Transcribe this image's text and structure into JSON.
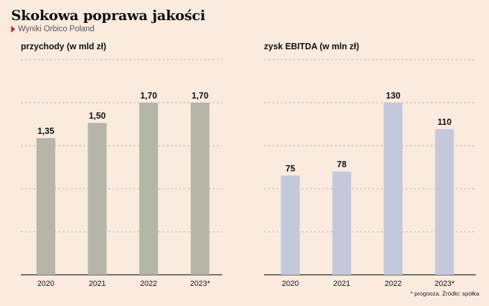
{
  "header": {
    "title": "Skokowa poprawa jakości",
    "subtitle": "Wyniki Orbico Poland",
    "marker_color": "#d7262b"
  },
  "footnote": "* prognoza. Źródło: spółka",
  "chart_data": [
    {
      "type": "bar",
      "title": "przychody (w mld zł)",
      "categories": [
        "2020",
        "2021",
        "2022",
        "2023*"
      ],
      "values": [
        1.35,
        1.5,
        1.7,
        1.7
      ],
      "value_labels": [
        "1,35",
        "1,50",
        "1,70",
        "1,70"
      ],
      "ylim": [
        0,
        2.125
      ],
      "grid": true,
      "bar_color": "#b5b5a8"
    },
    {
      "type": "bar",
      "title": "zysk EBITDA (w mln zł)",
      "categories": [
        "2020",
        "2021",
        "2022",
        "2023*"
      ],
      "values": [
        75,
        78,
        130,
        110
      ],
      "value_labels": [
        "75",
        "78",
        "130",
        "110"
      ],
      "ylim": [
        0,
        162.5
      ],
      "grid": true,
      "bar_color": "#c3c9da"
    }
  ]
}
